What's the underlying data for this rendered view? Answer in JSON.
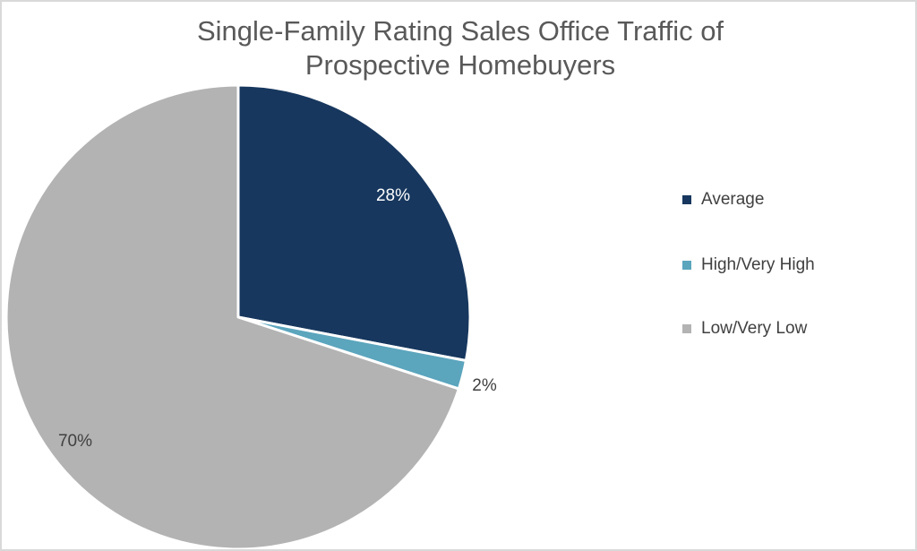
{
  "chart_data": {
    "type": "pie",
    "title": [
      "Single-Family Rating Sales Office Traffic of",
      "Prospective Homebuyers"
    ],
    "categories": [
      "Average",
      "High/Very High",
      "Low/Very Low"
    ],
    "values": [
      28,
      2,
      70
    ],
    "data_labels": [
      "28%",
      "2%",
      "70%"
    ],
    "colors": [
      "#17375e",
      "#5ba5bd",
      "#b3b3b3"
    ],
    "start_angle": "12 o'clock, clockwise",
    "legend_position": "right"
  }
}
